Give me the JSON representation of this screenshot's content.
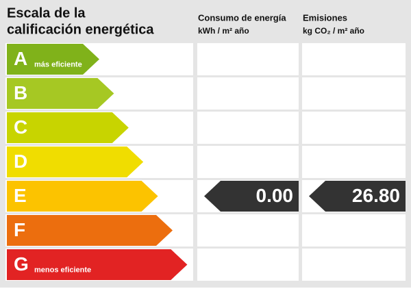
{
  "header": {
    "title": [
      "Escala de la",
      "calificación energética"
    ],
    "columns": [
      {
        "title": "Consumo de energía",
        "unit": "kWh / m² año"
      },
      {
        "title": "Emisiones",
        "unit": "kg CO₂ / m² año"
      }
    ]
  },
  "ratings": [
    {
      "letter": "A",
      "note": "más eficiente",
      "color": "#80b21a"
    },
    {
      "letter": "B",
      "color": "#a6c823"
    },
    {
      "letter": "C",
      "color": "#c8d400"
    },
    {
      "letter": "D",
      "color": "#f0dd00"
    },
    {
      "letter": "E",
      "color": "#fcc300"
    },
    {
      "letter": "F",
      "color": "#ec6e0e"
    },
    {
      "letter": "G",
      "note": "menos eficiente",
      "color": "#e22323"
    }
  ],
  "indicators": {
    "consumption": "0.00",
    "emissions": "26.80"
  }
}
